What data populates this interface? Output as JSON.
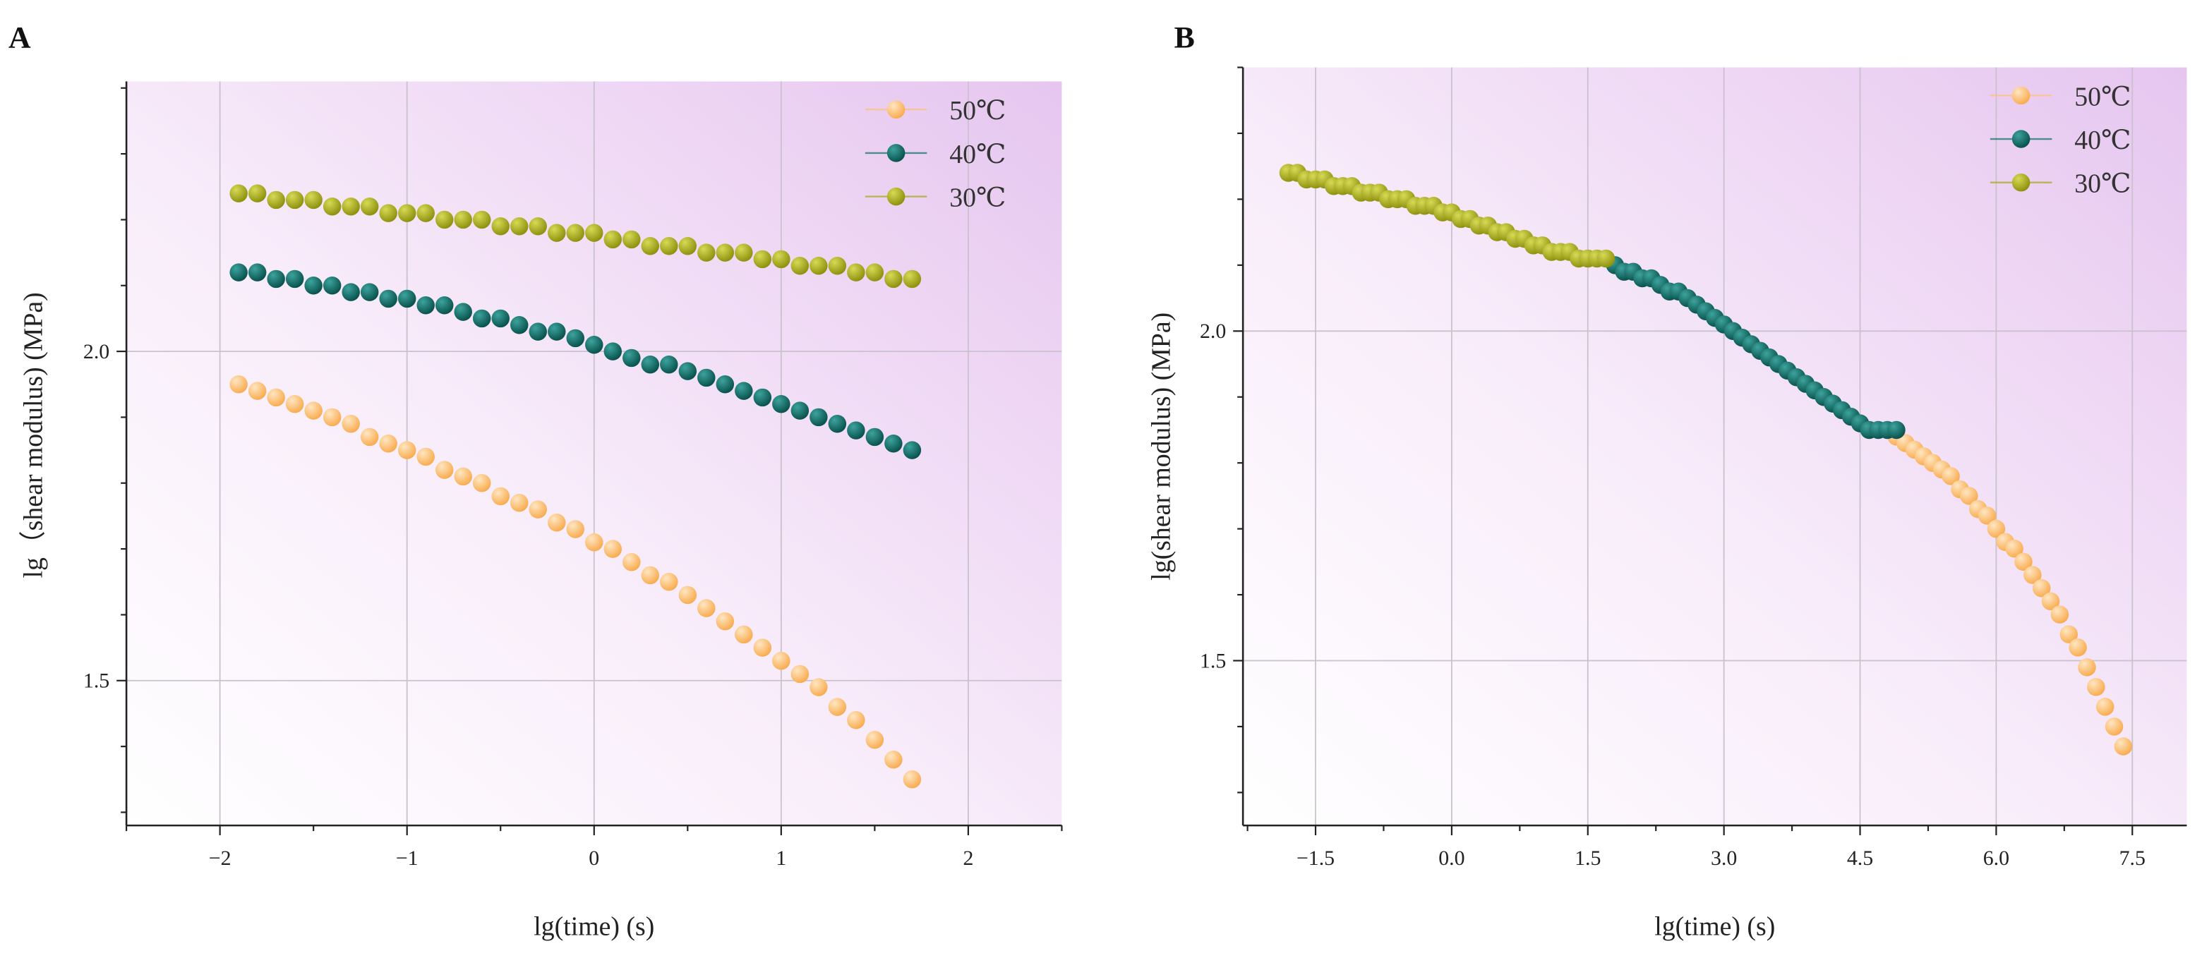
{
  "chart_data": [
    {
      "panel": "A",
      "type": "scatter",
      "title": "",
      "xlabel": "lg(time) (s)",
      "ylabel": "lg（shear modulus) (MPa)",
      "xlim": [
        -2.5,
        2.5
      ],
      "ylim": [
        1.28,
        2.41
      ],
      "xticks": [
        -2,
        -1,
        0,
        1,
        2
      ],
      "xtick_labels": [
        "−2",
        "−1",
        "0",
        "1",
        "2"
      ],
      "yticks": [
        1.5,
        2.0
      ],
      "ytick_labels": [
        "1.5",
        "2.0"
      ],
      "grid": true,
      "legend": "top-right",
      "series": [
        {
          "name": "50℃",
          "color": "#fdc07a",
          "x": [
            -1.9,
            -1.8,
            -1.7,
            -1.6,
            -1.5,
            -1.4,
            -1.3,
            -1.2,
            -1.1,
            -1.0,
            -0.9,
            -0.8,
            -0.7,
            -0.6,
            -0.5,
            -0.4,
            -0.3,
            -0.2,
            -0.1,
            0.0,
            0.1,
            0.2,
            0.3,
            0.4,
            0.5,
            0.6,
            0.7,
            0.8,
            0.9,
            1.0,
            1.1,
            1.2,
            1.3,
            1.4,
            1.5,
            1.6,
            1.7
          ],
          "y": [
            1.95,
            1.94,
            1.93,
            1.92,
            1.91,
            1.9,
            1.89,
            1.87,
            1.86,
            1.85,
            1.84,
            1.82,
            1.81,
            1.8,
            1.78,
            1.77,
            1.76,
            1.74,
            1.73,
            1.71,
            1.7,
            1.68,
            1.66,
            1.65,
            1.63,
            1.61,
            1.59,
            1.57,
            1.55,
            1.53,
            1.51,
            1.49,
            1.46,
            1.44,
            1.41,
            1.38,
            1.35
          ]
        },
        {
          "name": "40℃",
          "color": "#0d6e6a",
          "x": [
            -1.9,
            -1.8,
            -1.7,
            -1.6,
            -1.5,
            -1.4,
            -1.3,
            -1.2,
            -1.1,
            -1.0,
            -0.9,
            -0.8,
            -0.7,
            -0.6,
            -0.5,
            -0.4,
            -0.3,
            -0.2,
            -0.1,
            0.0,
            0.1,
            0.2,
            0.3,
            0.4,
            0.5,
            0.6,
            0.7,
            0.8,
            0.9,
            1.0,
            1.1,
            1.2,
            1.3,
            1.4,
            1.5,
            1.6,
            1.7
          ],
          "y": [
            2.12,
            2.12,
            2.11,
            2.11,
            2.1,
            2.1,
            2.09,
            2.09,
            2.08,
            2.08,
            2.07,
            2.07,
            2.06,
            2.05,
            2.05,
            2.04,
            2.03,
            2.03,
            2.02,
            2.01,
            2.0,
            1.99,
            1.98,
            1.98,
            1.97,
            1.96,
            1.95,
            1.94,
            1.93,
            1.92,
            1.91,
            1.9,
            1.89,
            1.88,
            1.87,
            1.86,
            1.85
          ]
        },
        {
          "name": "30℃",
          "color": "#a5a817",
          "x": [
            -1.9,
            -1.8,
            -1.7,
            -1.6,
            -1.5,
            -1.4,
            -1.3,
            -1.2,
            -1.1,
            -1.0,
            -0.9,
            -0.8,
            -0.7,
            -0.6,
            -0.5,
            -0.4,
            -0.3,
            -0.2,
            -0.1,
            0.0,
            0.1,
            0.2,
            0.3,
            0.4,
            0.5,
            0.6,
            0.7,
            0.8,
            0.9,
            1.0,
            1.1,
            1.2,
            1.3,
            1.4,
            1.5,
            1.6,
            1.7
          ],
          "y": [
            2.24,
            2.24,
            2.23,
            2.23,
            2.23,
            2.22,
            2.22,
            2.22,
            2.21,
            2.21,
            2.21,
            2.2,
            2.2,
            2.2,
            2.19,
            2.19,
            2.19,
            2.18,
            2.18,
            2.18,
            2.17,
            2.17,
            2.16,
            2.16,
            2.16,
            2.15,
            2.15,
            2.15,
            2.14,
            2.14,
            2.13,
            2.13,
            2.13,
            2.12,
            2.12,
            2.11,
            2.11
          ]
        }
      ]
    },
    {
      "panel": "B",
      "type": "scatter",
      "title": "",
      "xlabel": "lg(time) (s)",
      "ylabel": "lg(shear modulus) (MPa)",
      "xlim": [
        -2.3,
        8.1
      ],
      "ylim": [
        1.25,
        2.4
      ],
      "xticks": [
        -1.5,
        0.0,
        1.5,
        3.0,
        4.5,
        6.0,
        7.5
      ],
      "xtick_labels": [
        "−1.5",
        "0.0",
        "1.5",
        "3.0",
        "4.5",
        "6.0",
        "7.5"
      ],
      "yticks": [
        1.5,
        2.0
      ],
      "ytick_labels": [
        "1.5",
        "2.0"
      ],
      "grid": true,
      "legend": "top-right",
      "series": [
        {
          "name": "50℃",
          "color": "#fdc07a",
          "x": [
            4.9,
            5.0,
            5.1,
            5.2,
            5.3,
            5.4,
            5.5,
            5.6,
            5.7,
            5.8,
            5.9,
            6.0,
            6.1,
            6.2,
            6.3,
            6.4,
            6.5,
            6.6,
            6.7,
            6.8,
            6.9,
            7.0,
            7.1,
            7.2,
            7.3,
            7.4
          ],
          "y": [
            1.84,
            1.83,
            1.82,
            1.81,
            1.8,
            1.79,
            1.78,
            1.76,
            1.75,
            1.73,
            1.72,
            1.7,
            1.68,
            1.67,
            1.65,
            1.63,
            1.61,
            1.59,
            1.57,
            1.54,
            1.52,
            1.49,
            1.46,
            1.43,
            1.4,
            1.37
          ]
        },
        {
          "name": "40℃",
          "color": "#0d6e6a",
          "x": [
            1.8,
            1.9,
            2.0,
            2.1,
            2.2,
            2.3,
            2.4,
            2.5,
            2.6,
            2.7,
            2.8,
            2.9,
            3.0,
            3.1,
            3.2,
            3.3,
            3.4,
            3.5,
            3.6,
            3.7,
            3.8,
            3.9,
            4.0,
            4.1,
            4.2,
            4.3,
            4.4,
            4.5,
            4.6,
            4.7,
            4.8,
            4.9
          ],
          "y": [
            2.1,
            2.09,
            2.09,
            2.08,
            2.08,
            2.07,
            2.06,
            2.06,
            2.05,
            2.04,
            2.03,
            2.02,
            2.01,
            2.0,
            1.99,
            1.98,
            1.97,
            1.96,
            1.95,
            1.94,
            1.93,
            1.92,
            1.91,
            1.9,
            1.89,
            1.88,
            1.87,
            1.86,
            1.85,
            1.85,
            1.85,
            1.85
          ]
        },
        {
          "name": "30℃",
          "color": "#a5a817",
          "x": [
            -1.8,
            -1.7,
            -1.6,
            -1.5,
            -1.4,
            -1.3,
            -1.2,
            -1.1,
            -1.0,
            -0.9,
            -0.8,
            -0.7,
            -0.6,
            -0.5,
            -0.4,
            -0.3,
            -0.2,
            -0.1,
            0.0,
            0.1,
            0.2,
            0.3,
            0.4,
            0.5,
            0.6,
            0.7,
            0.8,
            0.9,
            1.0,
            1.1,
            1.2,
            1.3,
            1.4,
            1.5,
            1.6,
            1.7
          ],
          "y": [
            2.24,
            2.24,
            2.23,
            2.23,
            2.23,
            2.22,
            2.22,
            2.22,
            2.21,
            2.21,
            2.21,
            2.2,
            2.2,
            2.2,
            2.19,
            2.19,
            2.19,
            2.18,
            2.18,
            2.17,
            2.17,
            2.16,
            2.16,
            2.15,
            2.15,
            2.14,
            2.14,
            2.13,
            2.13,
            2.12,
            2.12,
            2.12,
            2.11,
            2.11,
            2.11,
            2.11
          ]
        }
      ]
    }
  ]
}
